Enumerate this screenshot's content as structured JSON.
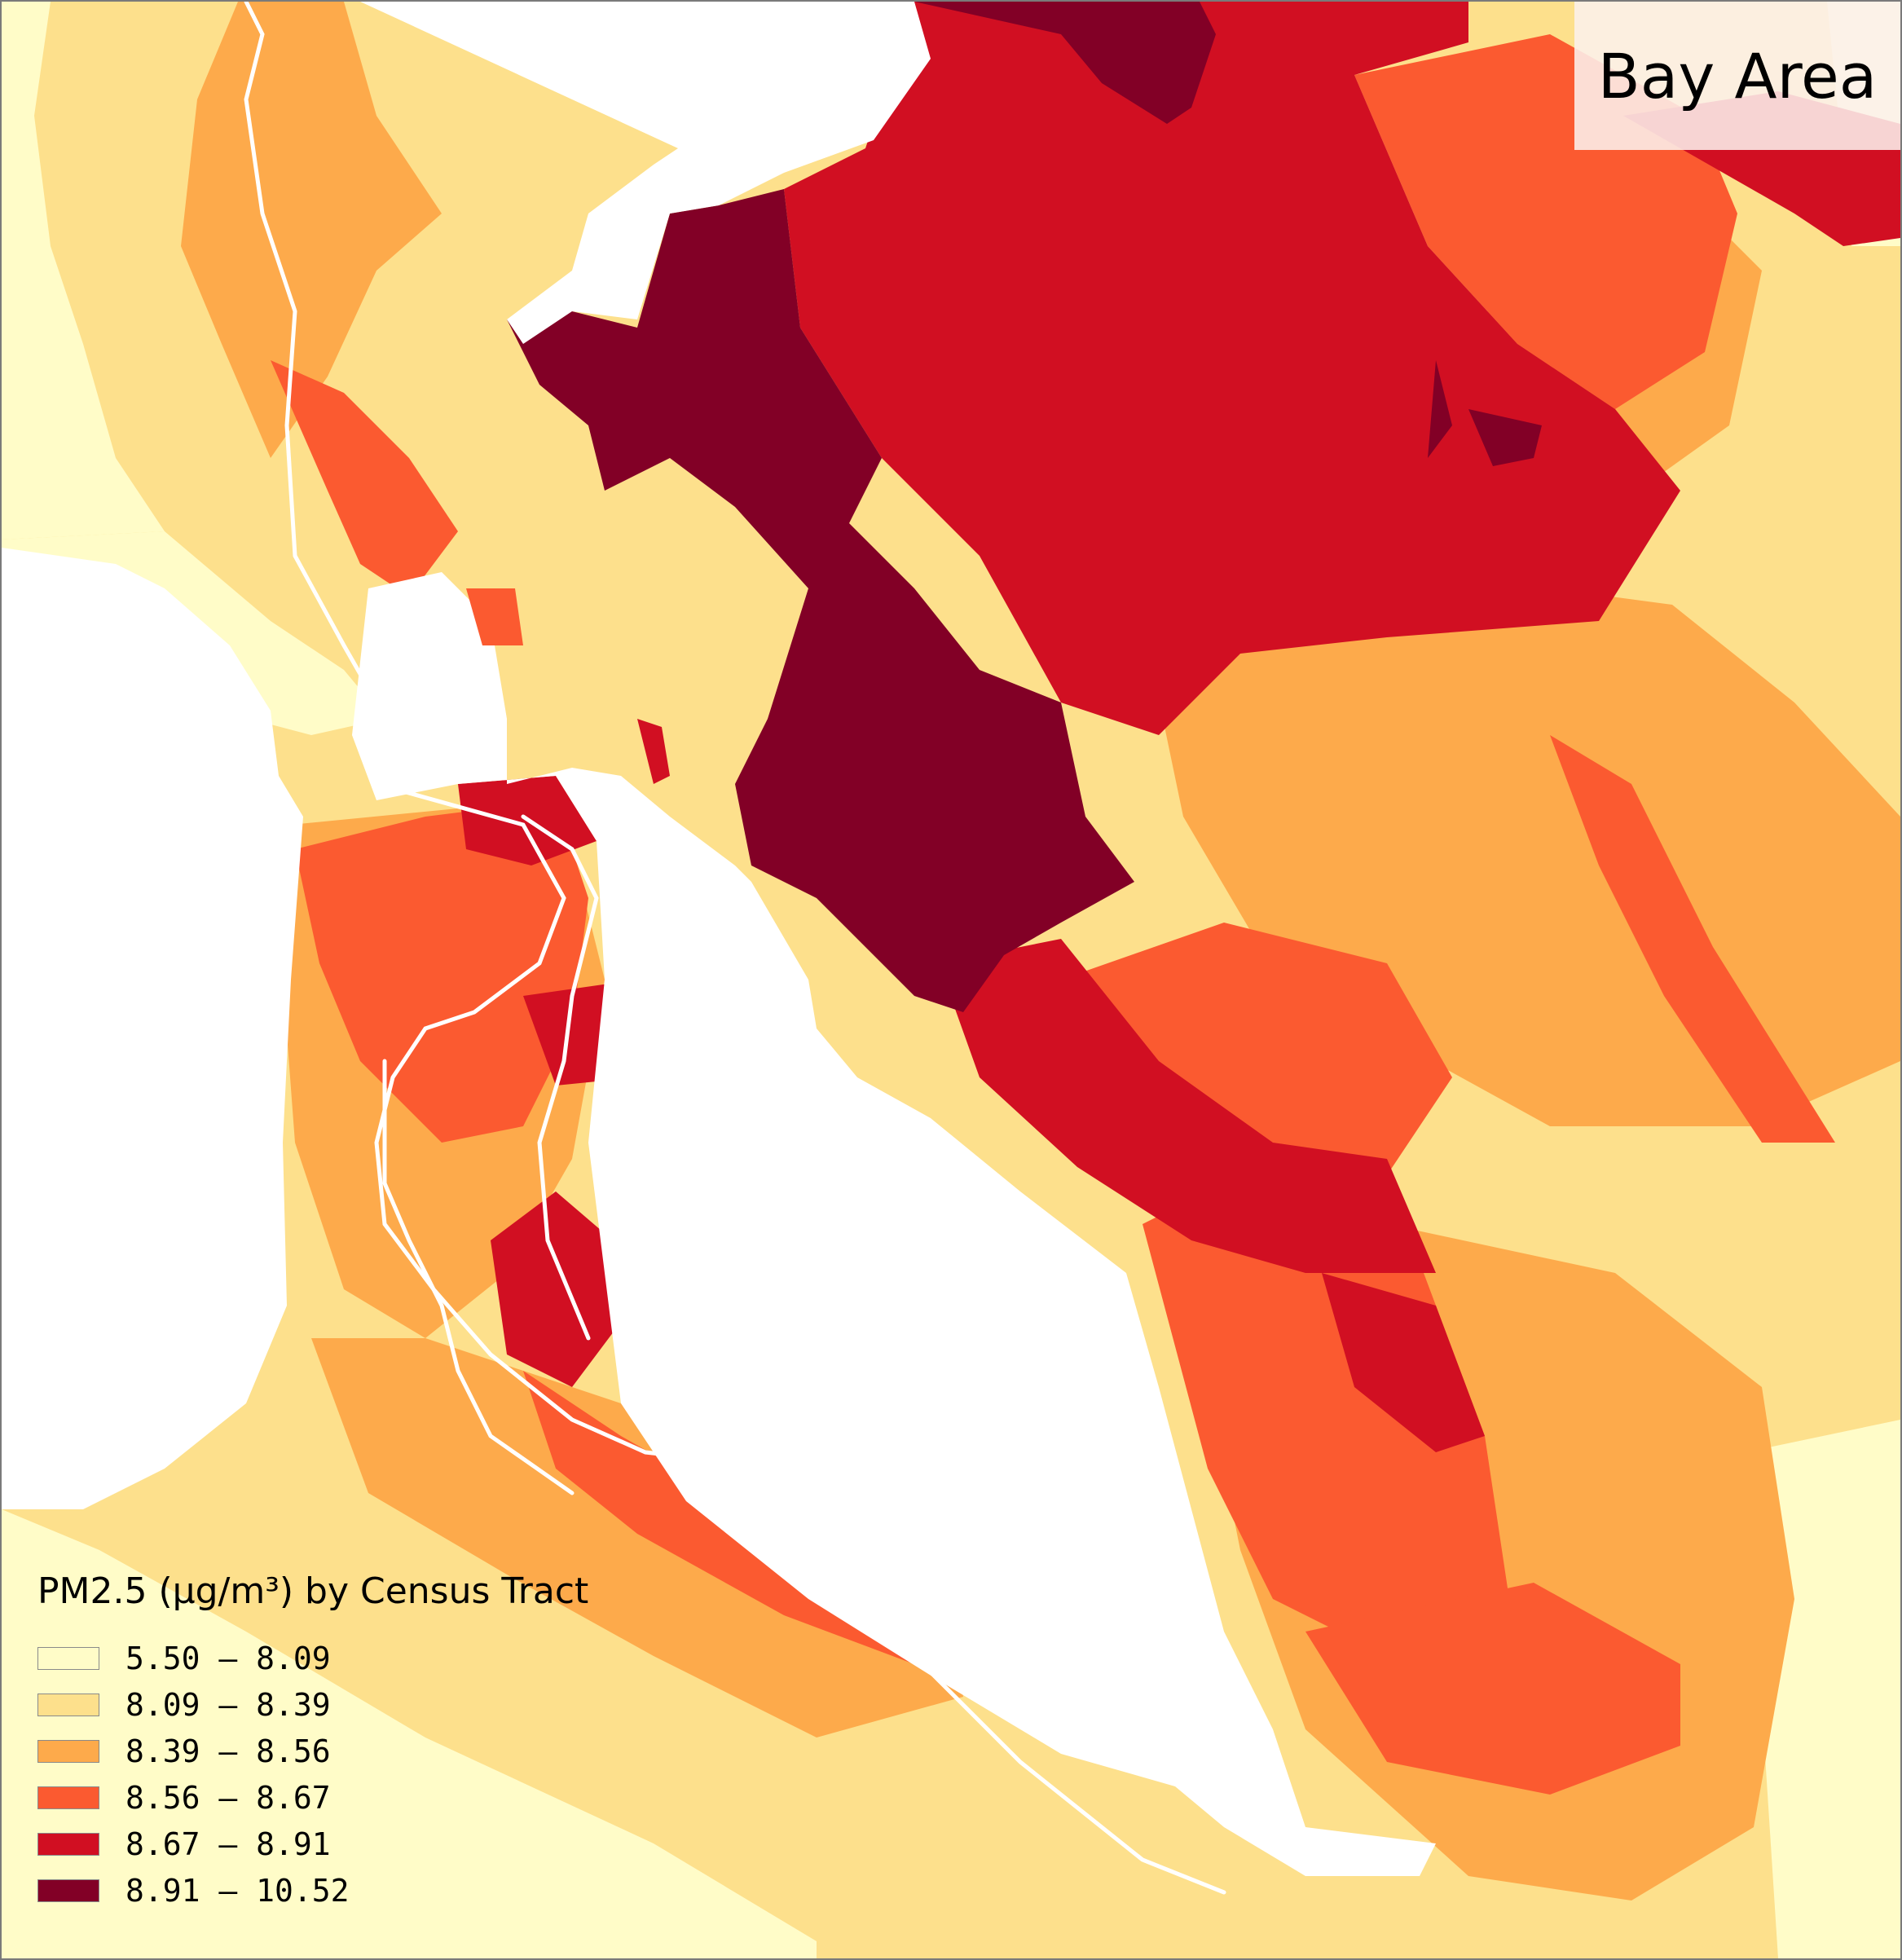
{
  "map": {
    "region_label": "Bay Area"
  },
  "legend": {
    "title": "PM2.5 (µg/m³) by Census Tract",
    "classes": [
      {
        "label": "5.50 – 8.09",
        "color": "#fffcc8"
      },
      {
        "label": "8.09 – 8.39",
        "color": "#fde08c"
      },
      {
        "label": "8.39 – 8.56",
        "color": "#fdaa4b"
      },
      {
        "label": "8.56 – 8.67",
        "color": "#fb5a30"
      },
      {
        "label": "8.67 – 8.91",
        "color": "#d10f22"
      },
      {
        "label": "8.91 – 10.52",
        "color": "#820026"
      }
    ]
  },
  "colors": {
    "water": "#ffffff",
    "highways": "#ffffff",
    "frame": "#7a7a7a"
  }
}
